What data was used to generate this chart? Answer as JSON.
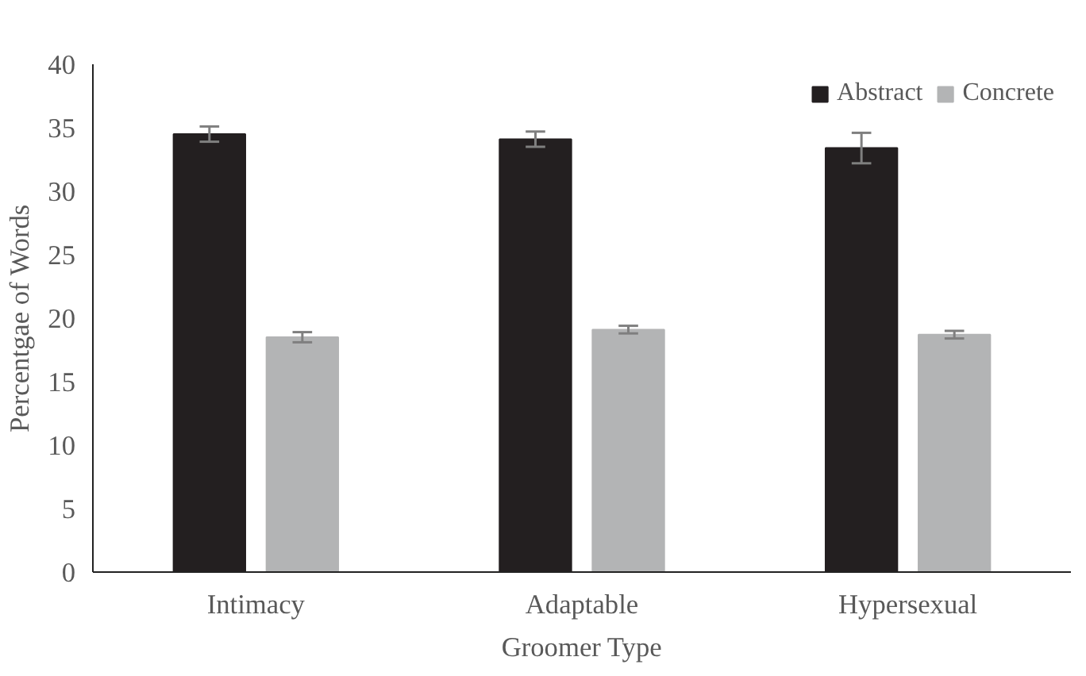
{
  "chart_data": {
    "type": "bar",
    "xlabel": "Groomer Type",
    "ylabel": "Percentgae of Words",
    "categories": [
      "Intimacy",
      "Adaptable",
      "Hypersexual"
    ],
    "series": [
      {
        "name": "Abstract",
        "color": "#231f20",
        "values": [
          34.5,
          34.1,
          33.4
        ],
        "errors": [
          0.6,
          0.6,
          1.2
        ]
      },
      {
        "name": "Concrete",
        "color": "#b3b4b5",
        "values": [
          18.5,
          19.1,
          18.7
        ],
        "errors": [
          0.4,
          0.3,
          0.3
        ]
      }
    ],
    "ylim": [
      0,
      40
    ],
    "yticks": [
      0,
      5,
      10,
      15,
      20,
      25,
      30,
      35,
      40
    ],
    "grid": false,
    "legend": "top right"
  }
}
